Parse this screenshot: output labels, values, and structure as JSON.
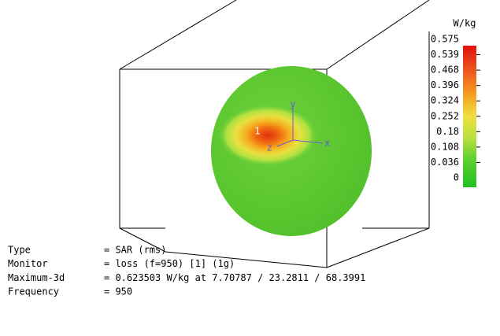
{
  "view": {
    "axis_labels": {
      "x": "x",
      "y": "y",
      "z": "z"
    },
    "marker": "1"
  },
  "colorbar": {
    "unit": "W/kg",
    "labels": [
      "0.575",
      "0.539",
      "0.468",
      "0.396",
      "0.324",
      "0.252",
      "0.18",
      "0.108",
      "0.036",
      "0"
    ]
  },
  "info": [
    {
      "key": "Type",
      "value": "= SAR (rms)"
    },
    {
      "key": "Monitor",
      "value": "= loss (f=950) [1] (1g)"
    },
    {
      "key": "Maximum-3d",
      "value": "= 0.623503 W/kg at 7.70787 / 23.2811 / 68.3991"
    },
    {
      "key": "Frequency",
      "value": "= 950"
    }
  ]
}
